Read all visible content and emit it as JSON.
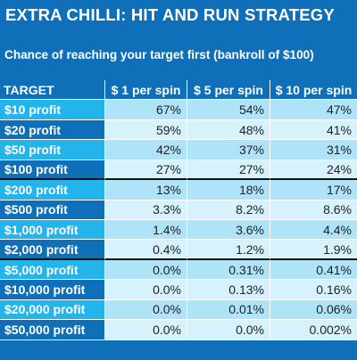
{
  "title": "EXTRA CHILLI: HIT AND RUN STRATEGY",
  "subtitle": "Chance of reaching your target first (bankroll of $100)",
  "headers": {
    "target": "TARGET",
    "col1": "$ 1 per spin",
    "col2": "$ 5 per spin",
    "col3": "$ 10 per spin"
  },
  "rows": [
    {
      "target": "$10 profit",
      "v1": "67%",
      "v2": "54%",
      "v3": "47%"
    },
    {
      "target": "$20 profit",
      "v1": "59%",
      "v2": "48%",
      "v3": "41%"
    },
    {
      "target": "$50 profit",
      "v1": "42%",
      "v2": "37%",
      "v3": "31%"
    },
    {
      "target": "$100 profit",
      "v1": "27%",
      "v2": "27%",
      "v3": "24%"
    },
    {
      "target": "$200 profit",
      "v1": "13%",
      "v2": "18%",
      "v3": "17%"
    },
    {
      "target": "$500 profit",
      "v1": "3.3%",
      "v2": "8.2%",
      "v3": "8.6%"
    },
    {
      "target": "$1,000 profit",
      "v1": "1.4%",
      "v2": "3.6%",
      "v3": "4.4%"
    },
    {
      "target": "$2,000 profit",
      "v1": "0.4%",
      "v2": "1.2%",
      "v3": "1.9%"
    },
    {
      "target": "$5,000 profit",
      "v1": "0.0%",
      "v2": "0.31%",
      "v3": "0.41%"
    },
    {
      "target": "$10,000 profit",
      "v1": "0.0%",
      "v2": "0.13%",
      "v3": "0.16%"
    },
    {
      "target": "$20,000 profit",
      "v1": "0.0%",
      "v2": "0.01%",
      "v3": "0.06%"
    },
    {
      "target": "$50,000 profit",
      "v1": "0.0%",
      "v2": "0.0%",
      "v3": "0.002%"
    }
  ],
  "colors": {
    "dark_blue": "#0f6fb8",
    "bright_blue": "#23b4ec",
    "light_cell": "#aee3f8",
    "lighter_cell": "#d6f2fc",
    "separator": "#111111"
  }
}
